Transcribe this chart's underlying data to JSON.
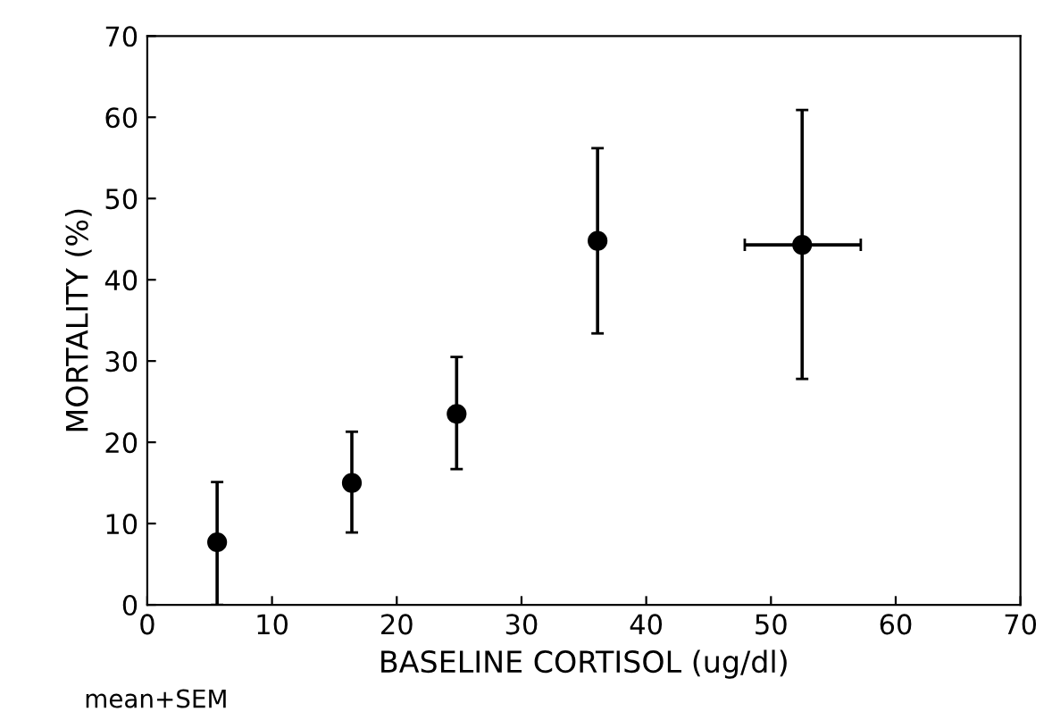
{
  "chart_data": {
    "type": "scatter",
    "xlabel": "BASELINE CORTISOL (ug/dl)",
    "ylabel": "MORTALITY (%)",
    "x": [
      5.6,
      16.4,
      24.8,
      36.1,
      52.5
    ],
    "values": [
      7.7,
      15.0,
      23.5,
      44.8,
      44.3
    ],
    "errors": [
      [
        0,
        15.1
      ],
      [
        8.9,
        21.3
      ],
      [
        16.7,
        30.5
      ],
      [
        33.4,
        56.2
      ],
      [
        27.8,
        60.9
      ]
    ],
    "xerrors": [
      null,
      null,
      null,
      null,
      [
        47.9,
        57.2
      ]
    ],
    "color": "#000000",
    "marker": "circle",
    "xlim": [
      0,
      70
    ],
    "ylim": [
      0,
      70
    ],
    "xticks": [
      0,
      10,
      20,
      30,
      40,
      50,
      60,
      70
    ],
    "yticks": [
      0,
      10,
      20,
      30,
      40,
      50,
      60,
      70
    ],
    "grid": false,
    "annotations": [
      "mean+SEM"
    ]
  }
}
